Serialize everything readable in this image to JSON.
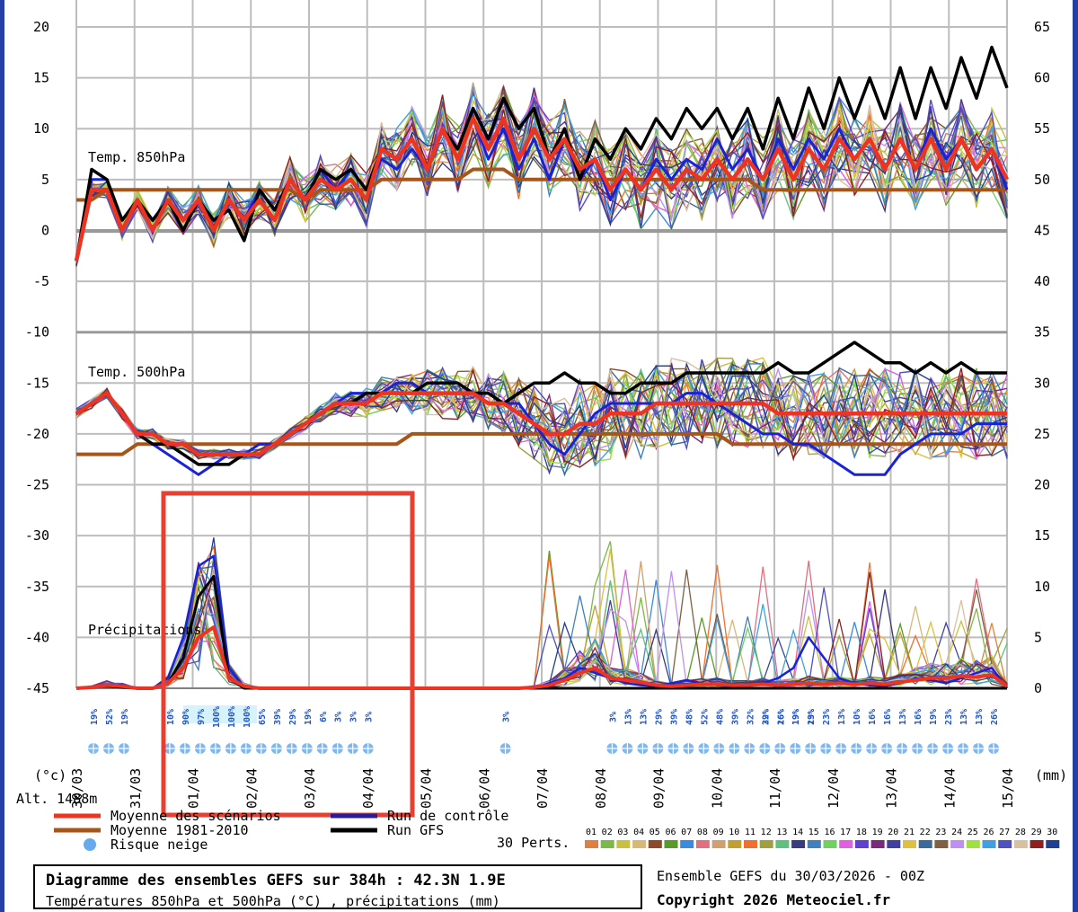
{
  "chart_data": {
    "type": "line",
    "title": "Diagramme des ensembles GEFS sur 384h : 42.3N 1.9E",
    "subtitle": "Températures 850hPa et 500hPa (°C) , précipitations (mm)",
    "run_info": "Ensemble GEFS du 30/03/2026 - 00Z",
    "copyright": "Copyright 2026 Meteociel.fr",
    "left_axis_label": "(°c)",
    "right_axis_label": "(mm)",
    "altitude": "Alt. 1488m",
    "y_left_ticks": [
      "20",
      "15",
      "10",
      "5",
      "0",
      "-5",
      "-10",
      "-15",
      "-20",
      "-25",
      "-30",
      "-35",
      "-40",
      "-45"
    ],
    "y_right_ticks": [
      "65",
      "60",
      "55",
      "50",
      "45",
      "40",
      "35",
      "30",
      "25",
      "20",
      "15",
      "10",
      "5",
      "0"
    ],
    "x_ticks": [
      "30/03",
      "31/03",
      "01/04",
      "02/04",
      "03/04",
      "04/04",
      "05/04",
      "06/04",
      "07/04",
      "08/04",
      "09/04",
      "10/04",
      "11/04",
      "12/04",
      "13/04",
      "14/04",
      "15/04"
    ],
    "panel_labels": [
      "Temp. 850hPa",
      "Temp. 500hPa",
      "Précipitations"
    ],
    "temp850": {
      "mean": [
        -3,
        4,
        4,
        0,
        3,
        0,
        3,
        1,
        3,
        0,
        3,
        1,
        3,
        1,
        5,
        3,
        5,
        4,
        5,
        3,
        8,
        7,
        9,
        6,
        10,
        7,
        11,
        8,
        11,
        7,
        10,
        7,
        9,
        6,
        7,
        4,
        6,
        4,
        6,
        4,
        6,
        5,
        7,
        5,
        7,
        5,
        8,
        5,
        8,
        6,
        9,
        7,
        9,
        6,
        9,
        6,
        9,
        6,
        9,
        6,
        8,
        5
      ],
      "normal": [
        3,
        3,
        4,
        4,
        4,
        4,
        4,
        4,
        4,
        4,
        4,
        4,
        4,
        4,
        4,
        3,
        4,
        4,
        4,
        4,
        5,
        5,
        5,
        5,
        5,
        5,
        6,
        6,
        6,
        5,
        5,
        5,
        5,
        5,
        5,
        5,
        5,
        5,
        5,
        5,
        5,
        5,
        5,
        5,
        5,
        4,
        4,
        4,
        4,
        4,
        4,
        4,
        4,
        4,
        4,
        4,
        4,
        4,
        4,
        4,
        4,
        4
      ],
      "gfs": [
        -3,
        6,
        5,
        1,
        3,
        1,
        3,
        0,
        3,
        1,
        2,
        -1,
        4,
        2,
        5,
        3,
        6,
        5,
        6,
        4,
        8,
        7,
        9,
        6,
        10,
        8,
        12,
        9,
        13,
        10,
        12,
        7,
        10,
        5,
        9,
        7,
        10,
        8,
        11,
        9,
        12,
        10,
        12,
        9,
        12,
        8,
        13,
        9,
        14,
        10,
        15,
        11,
        15,
        11,
        16,
        11,
        16,
        12,
        17,
        13,
        18,
        14
      ],
      "control": [
        -3,
        5,
        5,
        1,
        3,
        0,
        3,
        1,
        3,
        0,
        3,
        1,
        4,
        2,
        5,
        3,
        6,
        4,
        6,
        4,
        7,
        6,
        8,
        6,
        10,
        7,
        11,
        7,
        10,
        6,
        9,
        5,
        9,
        5,
        7,
        3,
        6,
        4,
        7,
        5,
        7,
        6,
        9,
        6,
        8,
        5,
        9,
        6,
        9,
        7,
        10,
        7,
        9,
        6,
        9,
        6,
        10,
        7,
        9,
        6,
        8,
        4
      ]
    },
    "temp500": {
      "mean": [
        -18,
        -17,
        -16,
        -18,
        -20,
        -20,
        -21,
        -21,
        -22,
        -22,
        -22,
        -22,
        -22,
        -21,
        -20,
        -19,
        -18,
        -17,
        -17,
        -17,
        -16,
        -16,
        -16,
        -16,
        -16,
        -16,
        -16,
        -17,
        -17,
        -18,
        -19,
        -20,
        -20,
        -19,
        -19,
        -18,
        -18,
        -18,
        -17,
        -17,
        -17,
        -17,
        -17,
        -17,
        -17,
        -17,
        -18,
        -18,
        -18,
        -18,
        -18,
        -18,
        -18,
        -18,
        -18,
        -18,
        -18,
        -18,
        -18,
        -18,
        -18,
        -18
      ],
      "normal": [
        -22,
        -22,
        -22,
        -22,
        -21,
        -21,
        -21,
        -21,
        -21,
        -21,
        -21,
        -21,
        -21,
        -21,
        -21,
        -21,
        -21,
        -21,
        -21,
        -21,
        -21,
        -21,
        -20,
        -20,
        -20,
        -20,
        -20,
        -20,
        -20,
        -20,
        -20,
        -20,
        -20,
        -20,
        -20,
        -20,
        -20,
        -20,
        -20,
        -20,
        -20,
        -20,
        -20,
        -21,
        -21,
        -21,
        -21,
        -21,
        -21,
        -21,
        -21,
        -21,
        -21,
        -21,
        -21,
        -21,
        -21,
        -21,
        -21,
        -21,
        -21,
        -21
      ],
      "gfs": [
        -18,
        -17,
        -16,
        -18,
        -20,
        -21,
        -21,
        -22,
        -23,
        -23,
        -23,
        -22,
        -22,
        -21,
        -20,
        -19,
        -18,
        -17,
        -17,
        -16,
        -16,
        -16,
        -16,
        -15,
        -15,
        -15,
        -16,
        -16,
        -17,
        -16,
        -15,
        -15,
        -14,
        -15,
        -15,
        -16,
        -16,
        -15,
        -15,
        -15,
        -14,
        -14,
        -14,
        -14,
        -14,
        -14,
        -13,
        -14,
        -14,
        -13,
        -12,
        -11,
        -12,
        -13,
        -13,
        -14,
        -13,
        -14,
        -13,
        -14,
        -14,
        -14
      ],
      "control": [
        -18,
        -17,
        -16,
        -18,
        -20,
        -21,
        -22,
        -23,
        -24,
        -23,
        -22,
        -22,
        -21,
        -21,
        -20,
        -19,
        -18,
        -17,
        -16,
        -16,
        -16,
        -15,
        -15,
        -16,
        -16,
        -16,
        -16,
        -16,
        -17,
        -17,
        -19,
        -21,
        -22,
        -20,
        -18,
        -17,
        -17,
        -17,
        -17,
        -17,
        -16,
        -16,
        -17,
        -18,
        -19,
        -20,
        -20,
        -21,
        -21,
        -22,
        -23,
        -24,
        -24,
        -24,
        -22,
        -21,
        -20,
        -20,
        -20,
        -19,
        -19,
        -19
      ]
    },
    "precip": {
      "mean": [
        0,
        0.1,
        0.3,
        0.2,
        0,
        0,
        0.5,
        2,
        5,
        6,
        1,
        0.2,
        0,
        0,
        0,
        0,
        0,
        0,
        0,
        0,
        0,
        0,
        0,
        0,
        0,
        0,
        0,
        0,
        0,
        0,
        0.1,
        0.3,
        0.8,
        1.5,
        2,
        1,
        0.8,
        0.6,
        0.3,
        0.2,
        0.3,
        0.4,
        0.4,
        0.3,
        0.3,
        0.4,
        0.3,
        0.4,
        0.5,
        0.4,
        0.5,
        0.4,
        0.5,
        0.4,
        0.6,
        0.8,
        1,
        1,
        1.2,
        1.1,
        1.3,
        0.2
      ],
      "gfs": [
        0,
        0.1,
        0.2,
        0.1,
        0,
        0,
        0.5,
        3,
        9,
        11,
        1,
        0,
        0,
        0,
        0,
        0,
        0,
        0,
        0,
        0,
        0,
        0,
        0,
        0,
        0,
        0,
        0,
        0,
        0,
        0,
        0,
        0,
        0,
        0,
        0,
        0,
        0,
        0,
        0,
        0,
        0,
        0,
        0,
        0,
        0,
        0,
        0,
        0,
        0,
        0,
        0,
        0,
        0,
        0,
        0,
        0,
        0,
        0,
        0,
        0,
        0,
        0
      ],
      "control": [
        0,
        0.1,
        0.3,
        0.2,
        0,
        0,
        1,
        5,
        12,
        13,
        2,
        0,
        0,
        0,
        0,
        0,
        0,
        0,
        0,
        0,
        0,
        0,
        0,
        0,
        0,
        0,
        0,
        0,
        0,
        0,
        0,
        0.5,
        1,
        2,
        1.5,
        1,
        0.5,
        0.3,
        0.2,
        0.5,
        0.8,
        0.5,
        0.3,
        0.2,
        0.3,
        0.5,
        1,
        2,
        5,
        3,
        1,
        0.5,
        0.3,
        0.2,
        0.5,
        1,
        0.8,
        0.5,
        1,
        1.5,
        2,
        0
      ]
    },
    "snow_risk": [
      "19%",
      "52%",
      "19%",
      "10%",
      "90%",
      "97%",
      "100%",
      "100%",
      "100%",
      "65%",
      "39%",
      "29%",
      "19%",
      "6%",
      "3%",
      "3%",
      "3%",
      "3%",
      "3%",
      "13%",
      "13%",
      "29%",
      "39%",
      "48%",
      "52%",
      "48%",
      "39%",
      "32%",
      "32%",
      "16%",
      "19%",
      "19%",
      "23%",
      "13%",
      "10%",
      "16%",
      "16%",
      "13%",
      "16%",
      "19%",
      "23%",
      "13%",
      "13%",
      "26%",
      "29%",
      "26%",
      "19%",
      "23%"
    ],
    "legend": [
      {
        "label": "Moyenne des scénarios",
        "color": "#ee3322"
      },
      {
        "label": "Moyenne 1981-2010",
        "color": "#a8551a"
      },
      {
        "label": "Risque neige",
        "color": "#66aaee"
      },
      {
        "label": "Run de contrôle",
        "color": "#2a1b9c"
      },
      {
        "label": "Run GFS",
        "color": "#000000"
      }
    ],
    "perts_label": "30 Perts.",
    "pert_numbers": [
      "01",
      "02",
      "03",
      "04",
      "05",
      "06",
      "07",
      "08",
      "09",
      "10",
      "11",
      "12",
      "13",
      "14",
      "15",
      "16",
      "17",
      "18",
      "19",
      "20",
      "21",
      "22",
      "23",
      "24",
      "25",
      "26",
      "27",
      "28",
      "29",
      "30"
    ],
    "pert_colors": [
      "#e08040",
      "#7db84a",
      "#c8c040",
      "#d8b878",
      "#8b4a2a",
      "#5a9a2a",
      "#3a8ae0",
      "#e07080",
      "#d0a070",
      "#c0a030",
      "#f07030",
      "#a0a040",
      "#60c080",
      "#3a3a80",
      "#4080c0",
      "#70d060",
      "#e060e0",
      "#6040d0",
      "#7a2a7a",
      "#4040a0",
      "#e0c040",
      "#3a6a9a",
      "#806040",
      "#c090f0",
      "#a0e040",
      "#40a0e0",
      "#5050c0",
      "#d8c0a0",
      "#902020",
      "#204090"
    ]
  },
  "annotation": {
    "color": "#e84030"
  }
}
